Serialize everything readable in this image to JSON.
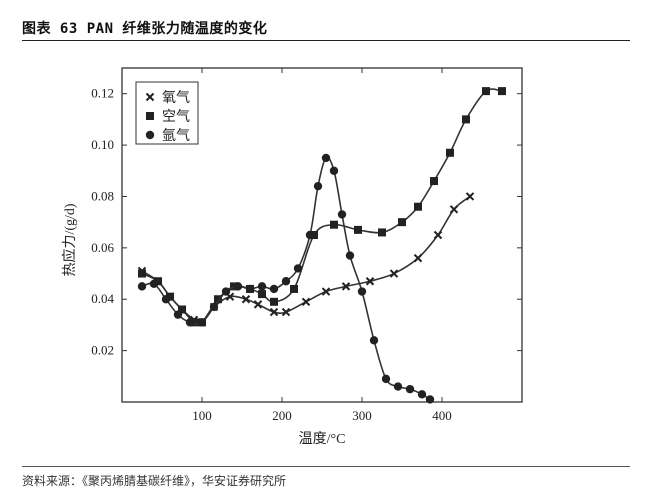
{
  "header": {
    "title": "图表 63 PAN 纤维张力随温度的变化"
  },
  "footer": {
    "source": "资料来源：《聚丙烯腈基碳纤维》，华安证券研究所"
  },
  "chart_data": {
    "type": "line",
    "xlabel": "温度/°C",
    "ylabel": "热应力/(g/d)",
    "xlim": [
      0,
      500
    ],
    "ylim": [
      0,
      0.13
    ],
    "xticks": [
      100,
      200,
      300,
      400
    ],
    "yticks": [
      0.02,
      0.04,
      0.06,
      0.08,
      0.1,
      0.12
    ],
    "ytick_labels": [
      "0.02",
      "0.04",
      "0.06",
      "0.08",
      "0.10",
      "0.12"
    ],
    "legend_position": "top-left",
    "series": [
      {
        "name": "氧气",
        "marker": "x",
        "x": [
          25,
          45,
          60,
          75,
          90,
          100,
          115,
          135,
          155,
          170,
          190,
          205,
          230,
          255,
          280,
          310,
          340,
          370,
          395,
          415,
          435
        ],
        "y": [
          0.051,
          0.047,
          0.041,
          0.036,
          0.032,
          0.031,
          0.037,
          0.041,
          0.04,
          0.038,
          0.035,
          0.035,
          0.039,
          0.043,
          0.045,
          0.047,
          0.05,
          0.056,
          0.065,
          0.075,
          0.08
        ]
      },
      {
        "name": "空气",
        "marker": "square",
        "x": [
          25,
          45,
          60,
          75,
          90,
          100,
          120,
          140,
          160,
          175,
          190,
          215,
          240,
          265,
          295,
          325,
          350,
          370,
          390,
          410,
          430,
          455,
          475
        ],
        "y": [
          0.05,
          0.047,
          0.041,
          0.036,
          0.031,
          0.031,
          0.04,
          0.045,
          0.044,
          0.042,
          0.039,
          0.044,
          0.065,
          0.069,
          0.067,
          0.066,
          0.07,
          0.076,
          0.086,
          0.097,
          0.11,
          0.121,
          0.121
        ]
      },
      {
        "name": "氩气",
        "marker": "circle",
        "x": [
          25,
          40,
          55,
          70,
          85,
          100,
          115,
          130,
          145,
          160,
          175,
          190,
          205,
          220,
          235,
          245,
          255,
          265,
          275,
          285,
          300,
          315,
          330,
          345,
          360,
          375,
          385
        ],
        "y": [
          0.045,
          0.046,
          0.04,
          0.034,
          0.031,
          0.031,
          0.037,
          0.043,
          0.045,
          0.044,
          0.045,
          0.044,
          0.047,
          0.052,
          0.065,
          0.084,
          0.095,
          0.09,
          0.073,
          0.057,
          0.043,
          0.024,
          0.009,
          0.006,
          0.005,
          0.003,
          0.001
        ]
      }
    ]
  }
}
